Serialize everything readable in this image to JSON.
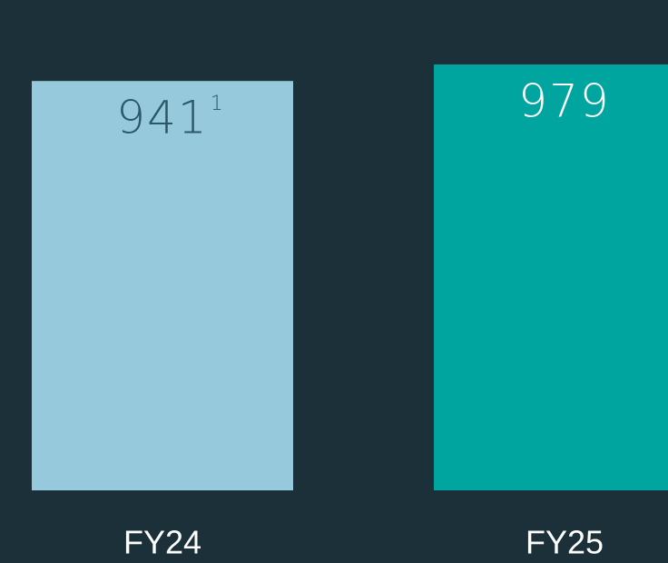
{
  "chart_data": {
    "type": "bar",
    "categories": [
      "FY24",
      "FY25"
    ],
    "values": [
      941,
      979
    ],
    "value_notes": [
      "1",
      null
    ],
    "colors": [
      "#96c9dc",
      "#00a59f"
    ],
    "value_label_colors": [
      "#2a5868",
      "#ffffff"
    ],
    "background": "#1b3038"
  }
}
